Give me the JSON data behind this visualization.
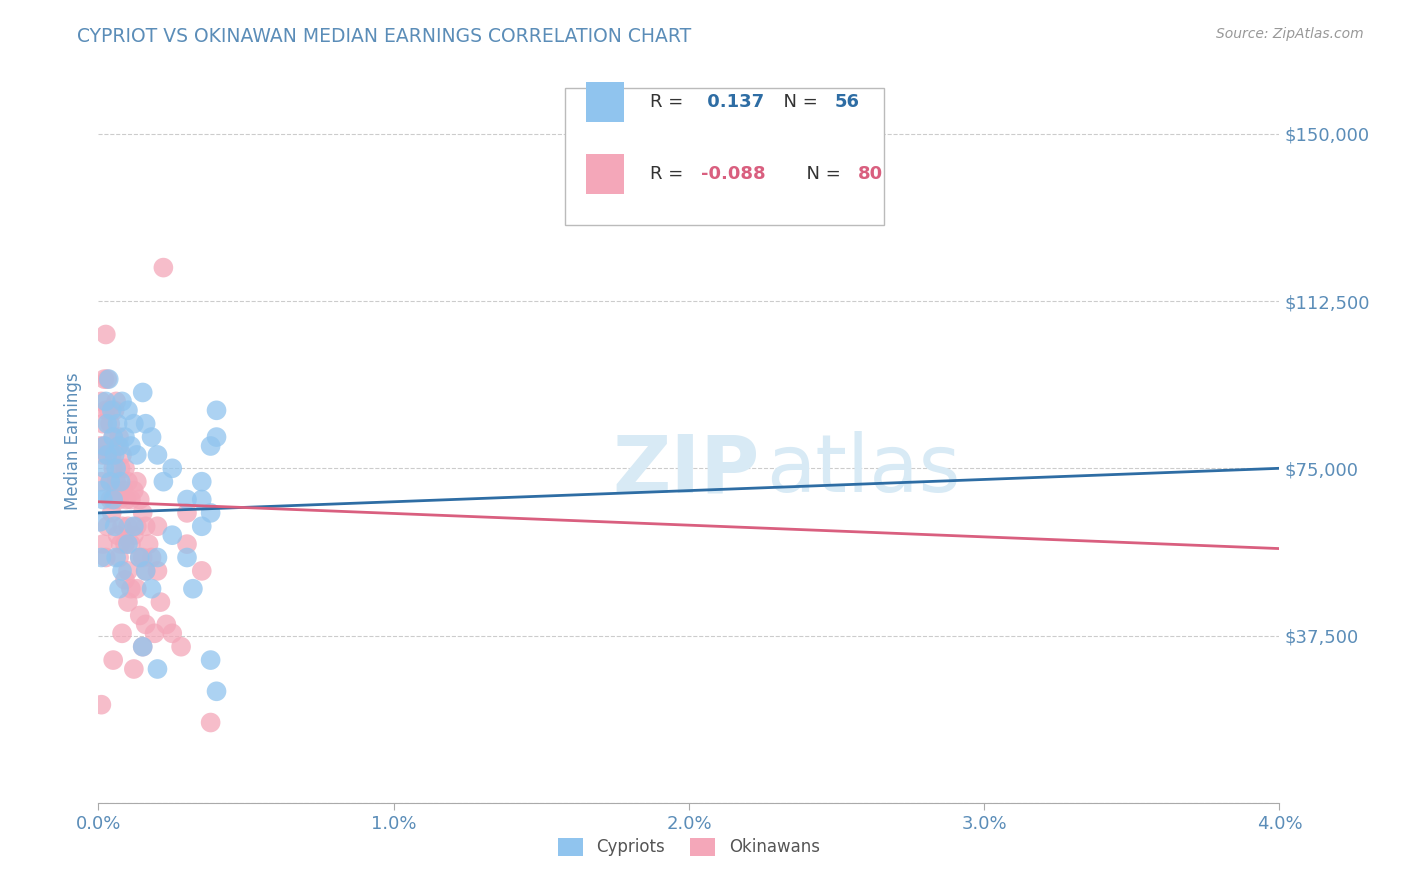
{
  "title": "CYPRIOT VS OKINAWAN MEDIAN EARNINGS CORRELATION CHART",
  "source": "Source: ZipAtlas.com",
  "ylabel": "Median Earnings",
  "xlim": [
    0.0,
    0.04
  ],
  "ylim": [
    0,
    162000
  ],
  "yticks": [
    0,
    37500,
    75000,
    112500,
    150000
  ],
  "ytick_labels": [
    "",
    "$37,500",
    "$75,000",
    "$112,500",
    "$150,000"
  ],
  "xticks": [
    0.0,
    0.01,
    0.02,
    0.03,
    0.04
  ],
  "xtick_labels": [
    "0.0%",
    "1.0%",
    "2.0%",
    "3.0%",
    "4.0%"
  ],
  "cypriot_color": "#90C4EE",
  "okinawan_color": "#F4A7B9",
  "cypriot_line_color": "#2E6DA4",
  "okinawan_line_color": "#D95F7F",
  "R_cypriot": 0.137,
  "N_cypriot": 56,
  "R_okinawan": -0.088,
  "N_okinawan": 80,
  "background_color": "#FFFFFF",
  "grid_color": "#CCCCCC",
  "title_color": "#5B8DB8",
  "axis_label_color": "#5B8DB8",
  "tick_label_color": "#5B8DB8",
  "watermark_color": "#D8EAF5",
  "cyp_trend": [
    65000,
    75000
  ],
  "ok_trend": [
    67500,
    57000
  ],
  "cypriot_scatter": [
    [
      5e-05,
      63000
    ],
    [
      0.0001,
      70000
    ],
    [
      0.00015,
      68000
    ],
    [
      0.0001,
      55000
    ],
    [
      0.0002,
      80000
    ],
    [
      0.00025,
      90000
    ],
    [
      0.0002,
      75000
    ],
    [
      0.0003,
      85000
    ],
    [
      0.00035,
      95000
    ],
    [
      0.0003,
      78000
    ],
    [
      0.00045,
      88000
    ],
    [
      0.0004,
      72000
    ],
    [
      0.0005,
      82000
    ],
    [
      0.00055,
      78000
    ],
    [
      0.0005,
      68000
    ],
    [
      0.0006,
      75000
    ],
    [
      0.00065,
      85000
    ],
    [
      0.0007,
      80000
    ],
    [
      0.00075,
      72000
    ],
    [
      0.0008,
      90000
    ],
    [
      0.0009,
      82000
    ],
    [
      0.001,
      88000
    ],
    [
      0.0011,
      80000
    ],
    [
      0.0012,
      85000
    ],
    [
      0.0013,
      78000
    ],
    [
      0.0015,
      92000
    ],
    [
      0.0016,
      85000
    ],
    [
      0.0018,
      82000
    ],
    [
      0.002,
      78000
    ],
    [
      0.0022,
      72000
    ],
    [
      0.0025,
      75000
    ],
    [
      0.003,
      68000
    ],
    [
      0.0035,
      72000
    ],
    [
      0.0038,
      65000
    ],
    [
      0.004,
      82000
    ],
    [
      0.00055,
      62000
    ],
    [
      0.0006,
      55000
    ],
    [
      0.0007,
      48000
    ],
    [
      0.0008,
      52000
    ],
    [
      0.001,
      58000
    ],
    [
      0.0012,
      62000
    ],
    [
      0.0014,
      55000
    ],
    [
      0.0016,
      52000
    ],
    [
      0.0018,
      48000
    ],
    [
      0.002,
      55000
    ],
    [
      0.0025,
      60000
    ],
    [
      0.003,
      55000
    ],
    [
      0.0032,
      48000
    ],
    [
      0.0015,
      35000
    ],
    [
      0.002,
      30000
    ],
    [
      0.004,
      25000
    ],
    [
      0.0038,
      32000
    ],
    [
      0.0035,
      62000
    ],
    [
      0.0035,
      68000
    ],
    [
      0.004,
      88000
    ],
    [
      0.0038,
      80000
    ]
  ],
  "okinawan_scatter": [
    [
      5e-05,
      80000
    ],
    [
      0.0001,
      90000
    ],
    [
      0.00015,
      85000
    ],
    [
      0.0001,
      72000
    ],
    [
      0.00015,
      78000
    ],
    [
      0.0002,
      95000
    ],
    [
      0.00025,
      88000
    ],
    [
      0.0002,
      80000
    ],
    [
      0.00025,
      105000
    ],
    [
      0.0003,
      95000
    ],
    [
      0.00035,
      88000
    ],
    [
      0.0003,
      78000
    ],
    [
      0.0004,
      85000
    ],
    [
      0.00045,
      78000
    ],
    [
      0.0004,
      72000
    ],
    [
      0.00045,
      65000
    ],
    [
      0.0005,
      82000
    ],
    [
      0.00055,
      88000
    ],
    [
      0.0005,
      75000
    ],
    [
      0.00055,
      68000
    ],
    [
      0.0006,
      90000
    ],
    [
      0.00065,
      80000
    ],
    [
      0.0006,
      70000
    ],
    [
      0.00065,
      60000
    ],
    [
      0.0007,
      82000
    ],
    [
      0.00075,
      75000
    ],
    [
      0.0007,
      68000
    ],
    [
      0.00075,
      58000
    ],
    [
      0.0008,
      78000
    ],
    [
      0.00085,
      70000
    ],
    [
      0.0008,
      62000
    ],
    [
      0.0009,
      75000
    ],
    [
      0.00095,
      68000
    ],
    [
      0.0009,
      58000
    ],
    [
      0.001,
      72000
    ],
    [
      0.001,
      62000
    ],
    [
      0.001,
      52000
    ],
    [
      0.0011,
      68000
    ],
    [
      0.0011,
      58000
    ],
    [
      0.0011,
      48000
    ],
    [
      0.0012,
      70000
    ],
    [
      0.0012,
      60000
    ],
    [
      0.0013,
      72000
    ],
    [
      0.0013,
      62000
    ],
    [
      0.0014,
      68000
    ],
    [
      0.0014,
      55000
    ],
    [
      0.0015,
      65000
    ],
    [
      0.0015,
      55000
    ],
    [
      0.0016,
      62000
    ],
    [
      0.0016,
      52000
    ],
    [
      0.0017,
      58000
    ],
    [
      0.0018,
      55000
    ],
    [
      0.002,
      62000
    ],
    [
      0.002,
      52000
    ],
    [
      0.0022,
      120000
    ],
    [
      0.003,
      58000
    ],
    [
      0.003,
      65000
    ],
    [
      0.0035,
      52000
    ],
    [
      0.0038,
      18000
    ],
    [
      0.0001,
      22000
    ],
    [
      0.0005,
      32000
    ],
    [
      0.0008,
      38000
    ],
    [
      0.0012,
      30000
    ],
    [
      0.0015,
      35000
    ],
    [
      0.00015,
      58000
    ],
    [
      0.0003,
      62000
    ],
    [
      0.0004,
      68000
    ],
    [
      0.0006,
      72000
    ],
    [
      0.00025,
      55000
    ],
    [
      0.0007,
      55000
    ],
    [
      0.0009,
      50000
    ],
    [
      0.001,
      45000
    ],
    [
      0.0013,
      48000
    ],
    [
      0.0014,
      42000
    ],
    [
      0.0016,
      40000
    ],
    [
      0.0019,
      38000
    ],
    [
      0.0021,
      45000
    ],
    [
      0.0023,
      40000
    ],
    [
      0.0025,
      38000
    ],
    [
      0.0028,
      35000
    ]
  ]
}
